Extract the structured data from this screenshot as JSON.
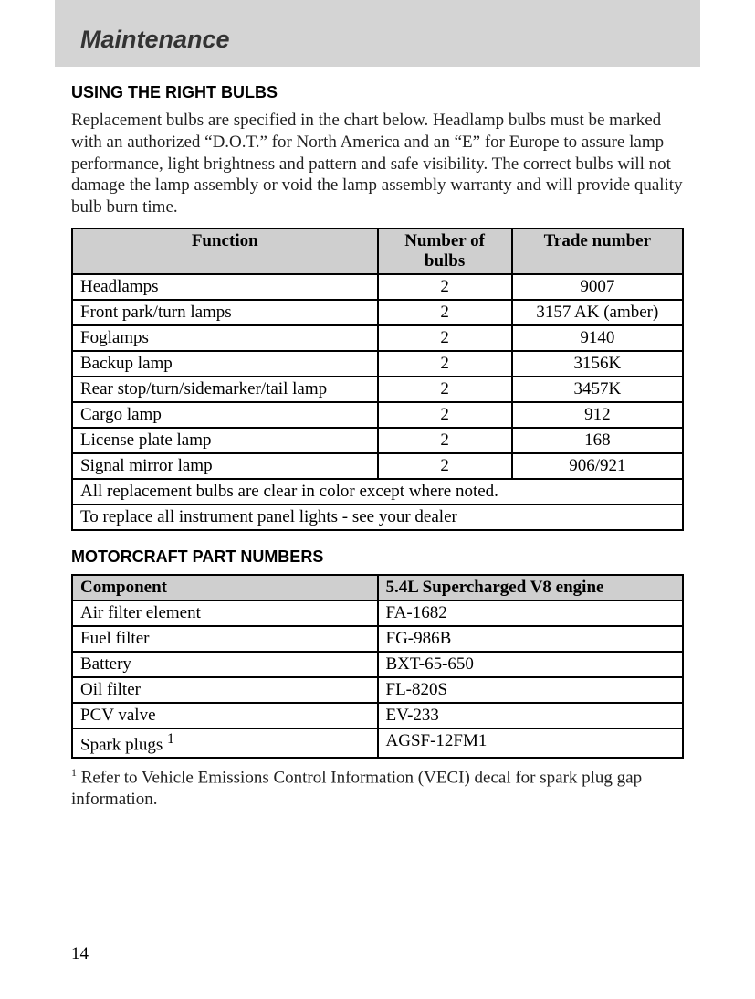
{
  "header": {
    "title": "Maintenance"
  },
  "section1": {
    "heading": "USING THE RIGHT BULBS",
    "paragraph": "Replacement bulbs are specified in the chart below. Headlamp bulbs must be marked with an authorized “D.O.T.” for North America and an “E” for Europe to assure lamp performance, light brightness and pattern and safe visibility. The correct bulbs will not damage the lamp assembly or void the lamp assembly warranty and will provide quality bulb burn time."
  },
  "bulbs_table": {
    "columns": [
      "Function",
      "Number of bulbs",
      "Trade number"
    ],
    "col_widths": [
      "50%",
      "22%",
      "28%"
    ],
    "rows": [
      {
        "function": "Headlamps",
        "number": "2",
        "trade": "9007"
      },
      {
        "function": "Front park/turn lamps",
        "number": "2",
        "trade": "3157 AK (amber)"
      },
      {
        "function": "Foglamps",
        "number": "2",
        "trade": "9140"
      },
      {
        "function": "Backup lamp",
        "number": "2",
        "trade": "3156K"
      },
      {
        "function": "Rear stop/turn/sidemarker/tail lamp",
        "number": "2",
        "trade": "3457K"
      },
      {
        "function": "Cargo lamp",
        "number": "2",
        "trade": "912"
      },
      {
        "function": "License plate lamp",
        "number": "2",
        "trade": "168"
      },
      {
        "function": "Signal mirror lamp",
        "number": "2",
        "trade": "906/921"
      }
    ],
    "notes": [
      "All replacement bulbs are clear in color except where noted.",
      "To replace all instrument panel lights - see your dealer"
    ]
  },
  "section2": {
    "heading": "MOTORCRAFT PART NUMBERS"
  },
  "parts_table": {
    "columns": [
      "Component",
      "5.4L Supercharged V8 engine"
    ],
    "col_widths": [
      "50%",
      "50%"
    ],
    "rows": [
      {
        "component": "Air filter element",
        "value": "FA-1682"
      },
      {
        "component": "Fuel filter",
        "value": "FG-986B"
      },
      {
        "component": "Battery",
        "value": "BXT-65-650"
      },
      {
        "component": "Oil filter",
        "value": "FL-820S"
      },
      {
        "component": "PCV valve",
        "value": "EV-233"
      },
      {
        "component": "Spark plugs",
        "super": "1",
        "value": "AGSF-12FM1"
      }
    ]
  },
  "footnote": {
    "super": "1",
    "text": " Refer to Vehicle Emissions Control Information (VECI) decal for spark plug gap information."
  },
  "page_number": "14",
  "colors": {
    "banner_bg": "#d4d4d4",
    "table_header_bg": "#cfcfcf",
    "border": "#000000",
    "text": "#222222"
  }
}
